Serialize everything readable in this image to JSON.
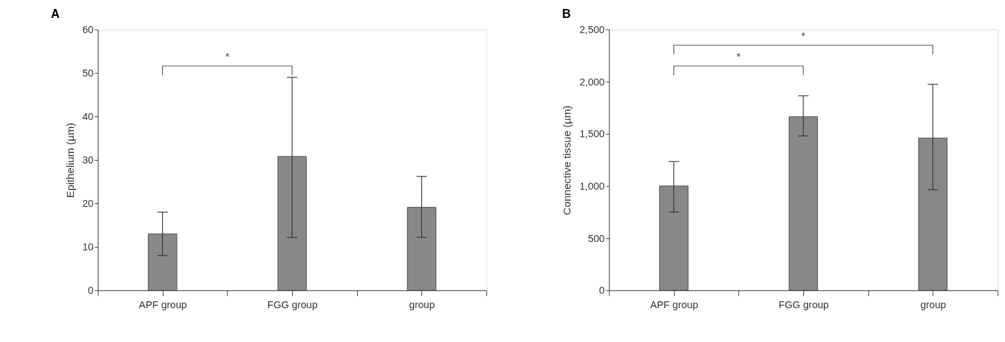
{
  "chart_data": [
    {
      "type": "bar",
      "title": "A",
      "ylabel": "Epithelium (µm)",
      "categories": [
        "APF group",
        "FGG group",
        "group"
      ],
      "values": [
        13,
        30.8,
        19.1
      ],
      "color": "#87888a",
      "errors": [
        [
          8,
          18
        ],
        [
          12.2,
          49
        ],
        [
          12.2,
          26.2
        ]
      ],
      "ylim": [
        0,
        60
      ],
      "yticks": [
        0,
        10,
        20,
        30,
        40,
        50,
        60
      ],
      "annotations": [
        "*"
      ]
    },
    {
      "type": "bar",
      "title": "B",
      "ylabel": "Connective tissue (µm)",
      "categories": [
        "APF group",
        "FGG group",
        "group"
      ],
      "values": [
        1000,
        1665,
        1460
      ],
      "color": "#87888a",
      "errors": [
        [
          750,
          1235
        ],
        [
          1480,
          1865
        ],
        [
          965,
          1975
        ]
      ],
      "ylim": [
        0,
        2500
      ],
      "yticks": [
        0,
        500,
        {
          "value": 1000,
          "label": "1,000"
        },
        {
          "value": 1500,
          "label": "1,500"
        },
        {
          "value": 2000,
          "label": "2,000"
        },
        {
          "value": 2500,
          "label": "2,500"
        }
      ],
      "annotations": [
        "*",
        "*"
      ]
    }
  ]
}
